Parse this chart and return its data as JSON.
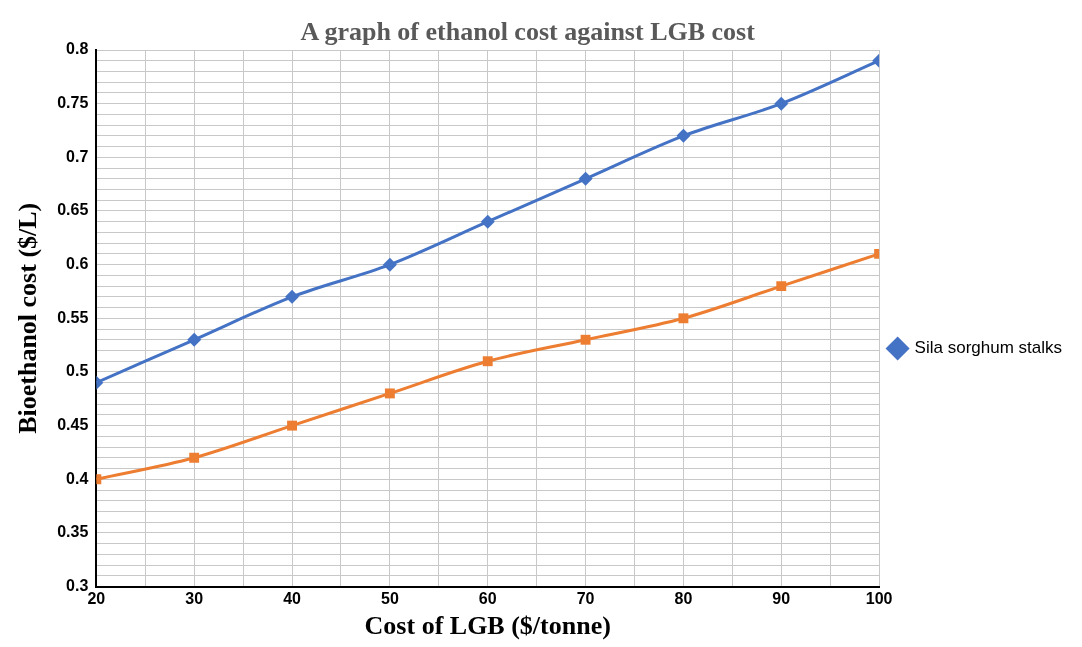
{
  "chart_data": {
    "type": "line",
    "title": "A graph of ethanol cost against LGB cost",
    "xlabel": "Cost of LGB ($/tonne)",
    "ylabel": "Bioethanol cost ($/L)",
    "x": [
      20,
      30,
      40,
      50,
      60,
      70,
      80,
      90,
      100
    ],
    "series": [
      {
        "name": "Sila sorghum stalks",
        "color": "#4472c4",
        "marker": "diamond",
        "values": [
          0.49,
          0.53,
          0.57,
          0.6,
          0.64,
          0.68,
          0.72,
          0.75,
          0.79
        ]
      },
      {
        "color": "#ed7d31",
        "marker": "square",
        "values": [
          0.4,
          0.42,
          0.45,
          0.48,
          0.51,
          0.53,
          0.55,
          0.58,
          0.61
        ]
      }
    ],
    "xlim": [
      20,
      100
    ],
    "xticks": [
      20,
      {
        "value": 25,
        "label": null
      },
      30,
      {
        "value": 35,
        "label": null
      },
      40,
      {
        "value": 45,
        "label": null
      },
      50,
      {
        "value": 55,
        "label": null
      },
      60,
      {
        "value": 65,
        "label": null
      },
      70,
      {
        "value": 75,
        "label": null
      },
      80,
      {
        "value": 85,
        "label": null
      },
      90,
      {
        "value": 95,
        "label": null
      },
      100
    ],
    "ylim": [
      0.3,
      0.8
    ],
    "yticks": [
      0.3,
      {
        "value": 0.31,
        "label": null
      },
      {
        "value": 0.32,
        "label": null
      },
      {
        "value": 0.33,
        "label": null
      },
      {
        "value": 0.34,
        "label": null
      },
      0.35,
      {
        "value": 0.36,
        "label": null
      },
      {
        "value": 0.37,
        "label": null
      },
      {
        "value": 0.38,
        "label": null
      },
      {
        "value": 0.39,
        "label": null
      },
      0.4,
      {
        "value": 0.41,
        "label": null
      },
      {
        "value": 0.42,
        "label": null
      },
      {
        "value": 0.43,
        "label": null
      },
      {
        "value": 0.44,
        "label": null
      },
      0.45,
      {
        "value": 0.46,
        "label": null
      },
      {
        "value": 0.47,
        "label": null
      },
      {
        "value": 0.48,
        "label": null
      },
      {
        "value": 0.49,
        "label": null
      },
      0.5,
      {
        "value": 0.51,
        "label": null
      },
      {
        "value": 0.52,
        "label": null
      },
      {
        "value": 0.53,
        "label": null
      },
      {
        "value": 0.54,
        "label": null
      },
      0.55,
      {
        "value": 0.56,
        "label": null
      },
      {
        "value": 0.57,
        "label": null
      },
      {
        "value": 0.58,
        "label": null
      },
      {
        "value": 0.59,
        "label": null
      },
      0.6,
      {
        "value": 0.61,
        "label": null
      },
      {
        "value": 0.62,
        "label": null
      },
      {
        "value": 0.63,
        "label": null
      },
      {
        "value": 0.64,
        "label": null
      },
      0.65,
      {
        "value": 0.66,
        "label": null
      },
      {
        "value": 0.67,
        "label": null
      },
      {
        "value": 0.68,
        "label": null
      },
      {
        "value": 0.69,
        "label": null
      },
      0.7,
      {
        "value": 0.71,
        "label": null
      },
      {
        "value": 0.72,
        "label": null
      },
      {
        "value": 0.73,
        "label": null
      },
      {
        "value": 0.74,
        "label": null
      },
      0.75,
      {
        "value": 0.76,
        "label": null
      },
      {
        "value": 0.77,
        "label": null
      },
      {
        "value": 0.78,
        "label": null
      },
      {
        "value": 0.79,
        "label": null
      },
      0.8
    ],
    "grid": true,
    "legend": "right",
    "line_style": "solid"
  }
}
